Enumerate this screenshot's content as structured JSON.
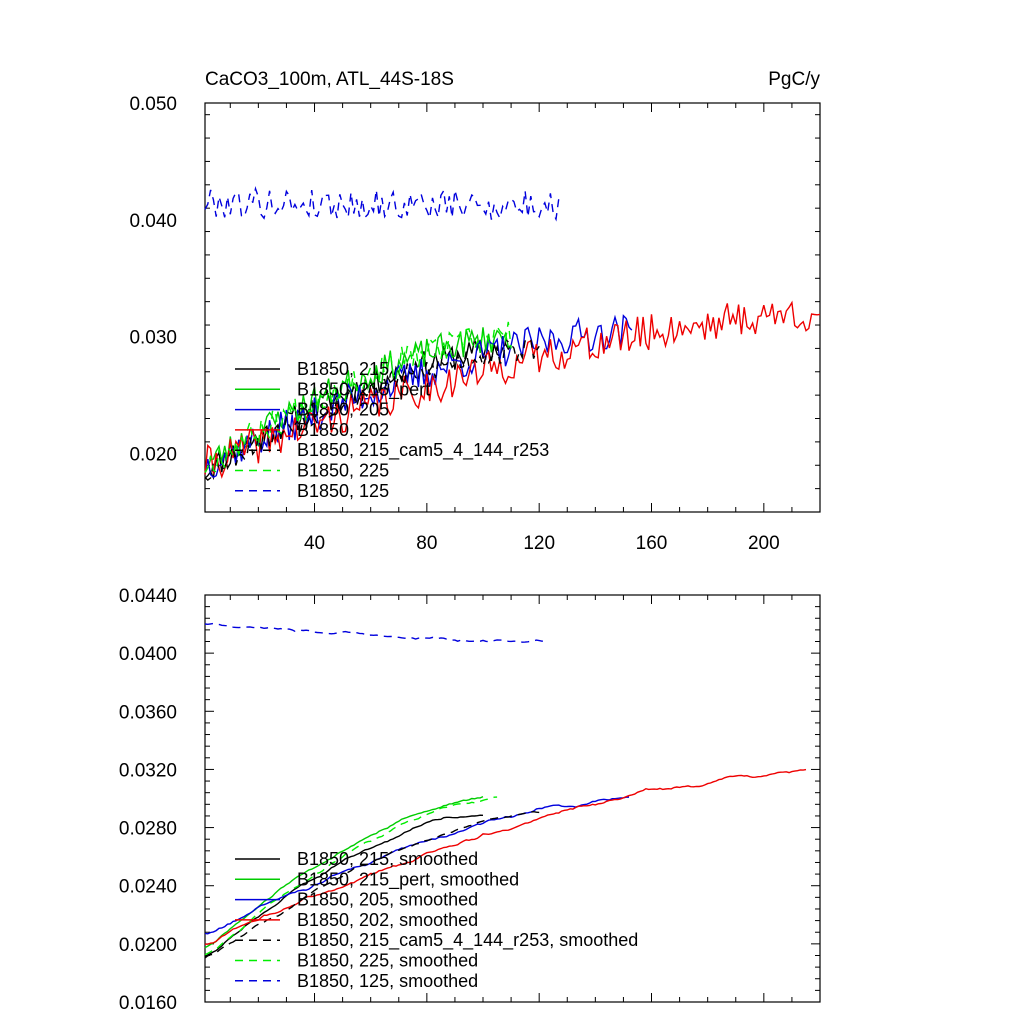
{
  "chart_data": [
    {
      "type": "line",
      "title": "CaCO3_100m, ATL_44S-18S",
      "units": "PgC/y",
      "xlabel": "",
      "ylabel": "",
      "xlim": [
        1,
        220
      ],
      "ylim": [
        0.015,
        0.05
      ],
      "x_ticks": [
        40,
        80,
        120,
        160,
        200
      ],
      "x_tick_labels": [
        "40",
        "80",
        "120",
        "160",
        "200"
      ],
      "y_ticks": [
        0.02,
        0.03,
        0.04,
        0.05
      ],
      "y_tick_labels": [
        "0.020",
        "0.030",
        "0.040",
        "0.050"
      ],
      "legend_position": "lower-left",
      "series": [
        {
          "name": "B1850, 215",
          "color": "#000000",
          "dash": "solid",
          "n": 110,
          "start": 0.0185,
          "end": 0.029,
          "noise": 0.0012,
          "seed": 11
        },
        {
          "name": "B1850, 215_pert",
          "color": "#00cc00",
          "dash": "solid",
          "n": 110,
          "start": 0.019,
          "end": 0.03,
          "noise": 0.0013,
          "seed": 23
        },
        {
          "name": "B1850, 205",
          "color": "#0000dd",
          "dash": "solid",
          "n": 153,
          "start": 0.019,
          "end": 0.0305,
          "noise": 0.0015,
          "seed": 37
        },
        {
          "name": "B1850, 202",
          "color": "#ee0000",
          "dash": "solid",
          "n": 220,
          "start": 0.019,
          "end": 0.032,
          "noise": 0.0016,
          "seed": 41
        },
        {
          "name": "B1850, 215_cam5_4_144_r253",
          "color": "#000000",
          "dash": "8,6",
          "n": 120,
          "start": 0.0185,
          "end": 0.029,
          "noise": 0.0011,
          "seed": 53
        },
        {
          "name": "B1850, 225",
          "color": "#00ee00",
          "dash": "8,6",
          "n": 110,
          "start": 0.019,
          "end": 0.03,
          "noise": 0.0013,
          "seed": 67
        },
        {
          "name": "B1850, 125",
          "color": "#0000dd",
          "dash": "8,6",
          "n": 127,
          "start": 0.0415,
          "end": 0.0412,
          "noise": 0.0013,
          "seed": 79
        }
      ]
    },
    {
      "type": "line",
      "title": "",
      "units": "",
      "xlabel": "",
      "ylabel": "",
      "xlim": [
        1,
        220
      ],
      "ylim": [
        0.016,
        0.044
      ],
      "x_ticks": [
        40,
        80,
        120,
        160,
        200
      ],
      "x_tick_labels": [],
      "y_ticks": [
        0.016,
        0.02,
        0.024,
        0.028,
        0.032,
        0.036,
        0.04,
        0.044
      ],
      "y_tick_labels": [
        "0.0160",
        "0.0200",
        "0.0240",
        "0.0280",
        "0.0320",
        "0.0360",
        "0.0400",
        "0.0440"
      ],
      "legend_position": "lower-left",
      "series": [
        {
          "name": "B1850, 215, smoothed",
          "color": "#000000",
          "dash": "solid",
          "n": 100,
          "start": 0.019,
          "end": 0.029,
          "noise": 0.0004,
          "seed": 12
        },
        {
          "name": "B1850, 215_pert, smoothed",
          "color": "#00cc00",
          "dash": "solid",
          "n": 100,
          "start": 0.0195,
          "end": 0.03,
          "noise": 0.0004,
          "seed": 24
        },
        {
          "name": "B1850, 205, smoothed",
          "color": "#0000dd",
          "dash": "solid",
          "n": 152,
          "start": 0.0205,
          "end": 0.03,
          "noise": 0.0005,
          "seed": 38
        },
        {
          "name": "B1850, 202, smoothed",
          "color": "#ee0000",
          "dash": "solid",
          "n": 215,
          "start": 0.02,
          "end": 0.0318,
          "noise": 0.0005,
          "seed": 42
        },
        {
          "name": "B1850, 215_cam5_4_144_r253, smoothed",
          "color": "#000000",
          "dash": "8,6",
          "n": 120,
          "start": 0.0188,
          "end": 0.029,
          "noise": 0.0004,
          "seed": 54
        },
        {
          "name": "B1850, 225, smoothed",
          "color": "#00ee00",
          "dash": "8,6",
          "n": 105,
          "start": 0.019,
          "end": 0.03,
          "noise": 0.0004,
          "seed": 68
        },
        {
          "name": "B1850, 125, smoothed",
          "color": "#0000dd",
          "dash": "8,6",
          "n": 122,
          "start": 0.042,
          "end": 0.0408,
          "noise": 0.0004,
          "seed": 80
        }
      ]
    }
  ]
}
